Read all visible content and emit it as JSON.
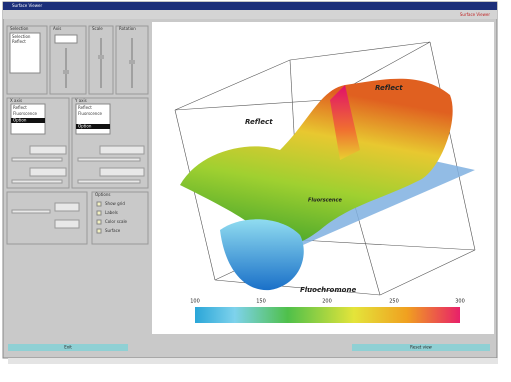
{
  "window": {
    "title": "Surface Viewer",
    "menu_right": "Surface Viewer"
  },
  "panels": {
    "groups": [
      "Selection",
      "Axis",
      "Scale",
      "Rotation",
      "X axis",
      "Y axis",
      "Options"
    ],
    "list_items": [
      "Selection",
      "Reflect"
    ],
    "x_list": [
      "Reflect",
      "Fluorscence",
      "Option"
    ],
    "y_list": [
      "Reflect",
      "Fluorscence",
      "Option"
    ],
    "checks": [
      "Show grid",
      "Labels",
      "Color scale",
      "Surface"
    ]
  },
  "plot": {
    "axis_labels": [
      "Reflect",
      "Reflect",
      "Fluorscence",
      "Fluochromone"
    ],
    "colorbar_ticks": [
      "100",
      "150",
      "200",
      "250",
      "300"
    ]
  },
  "buttons": [
    "Exit",
    "Reset view"
  ]
}
